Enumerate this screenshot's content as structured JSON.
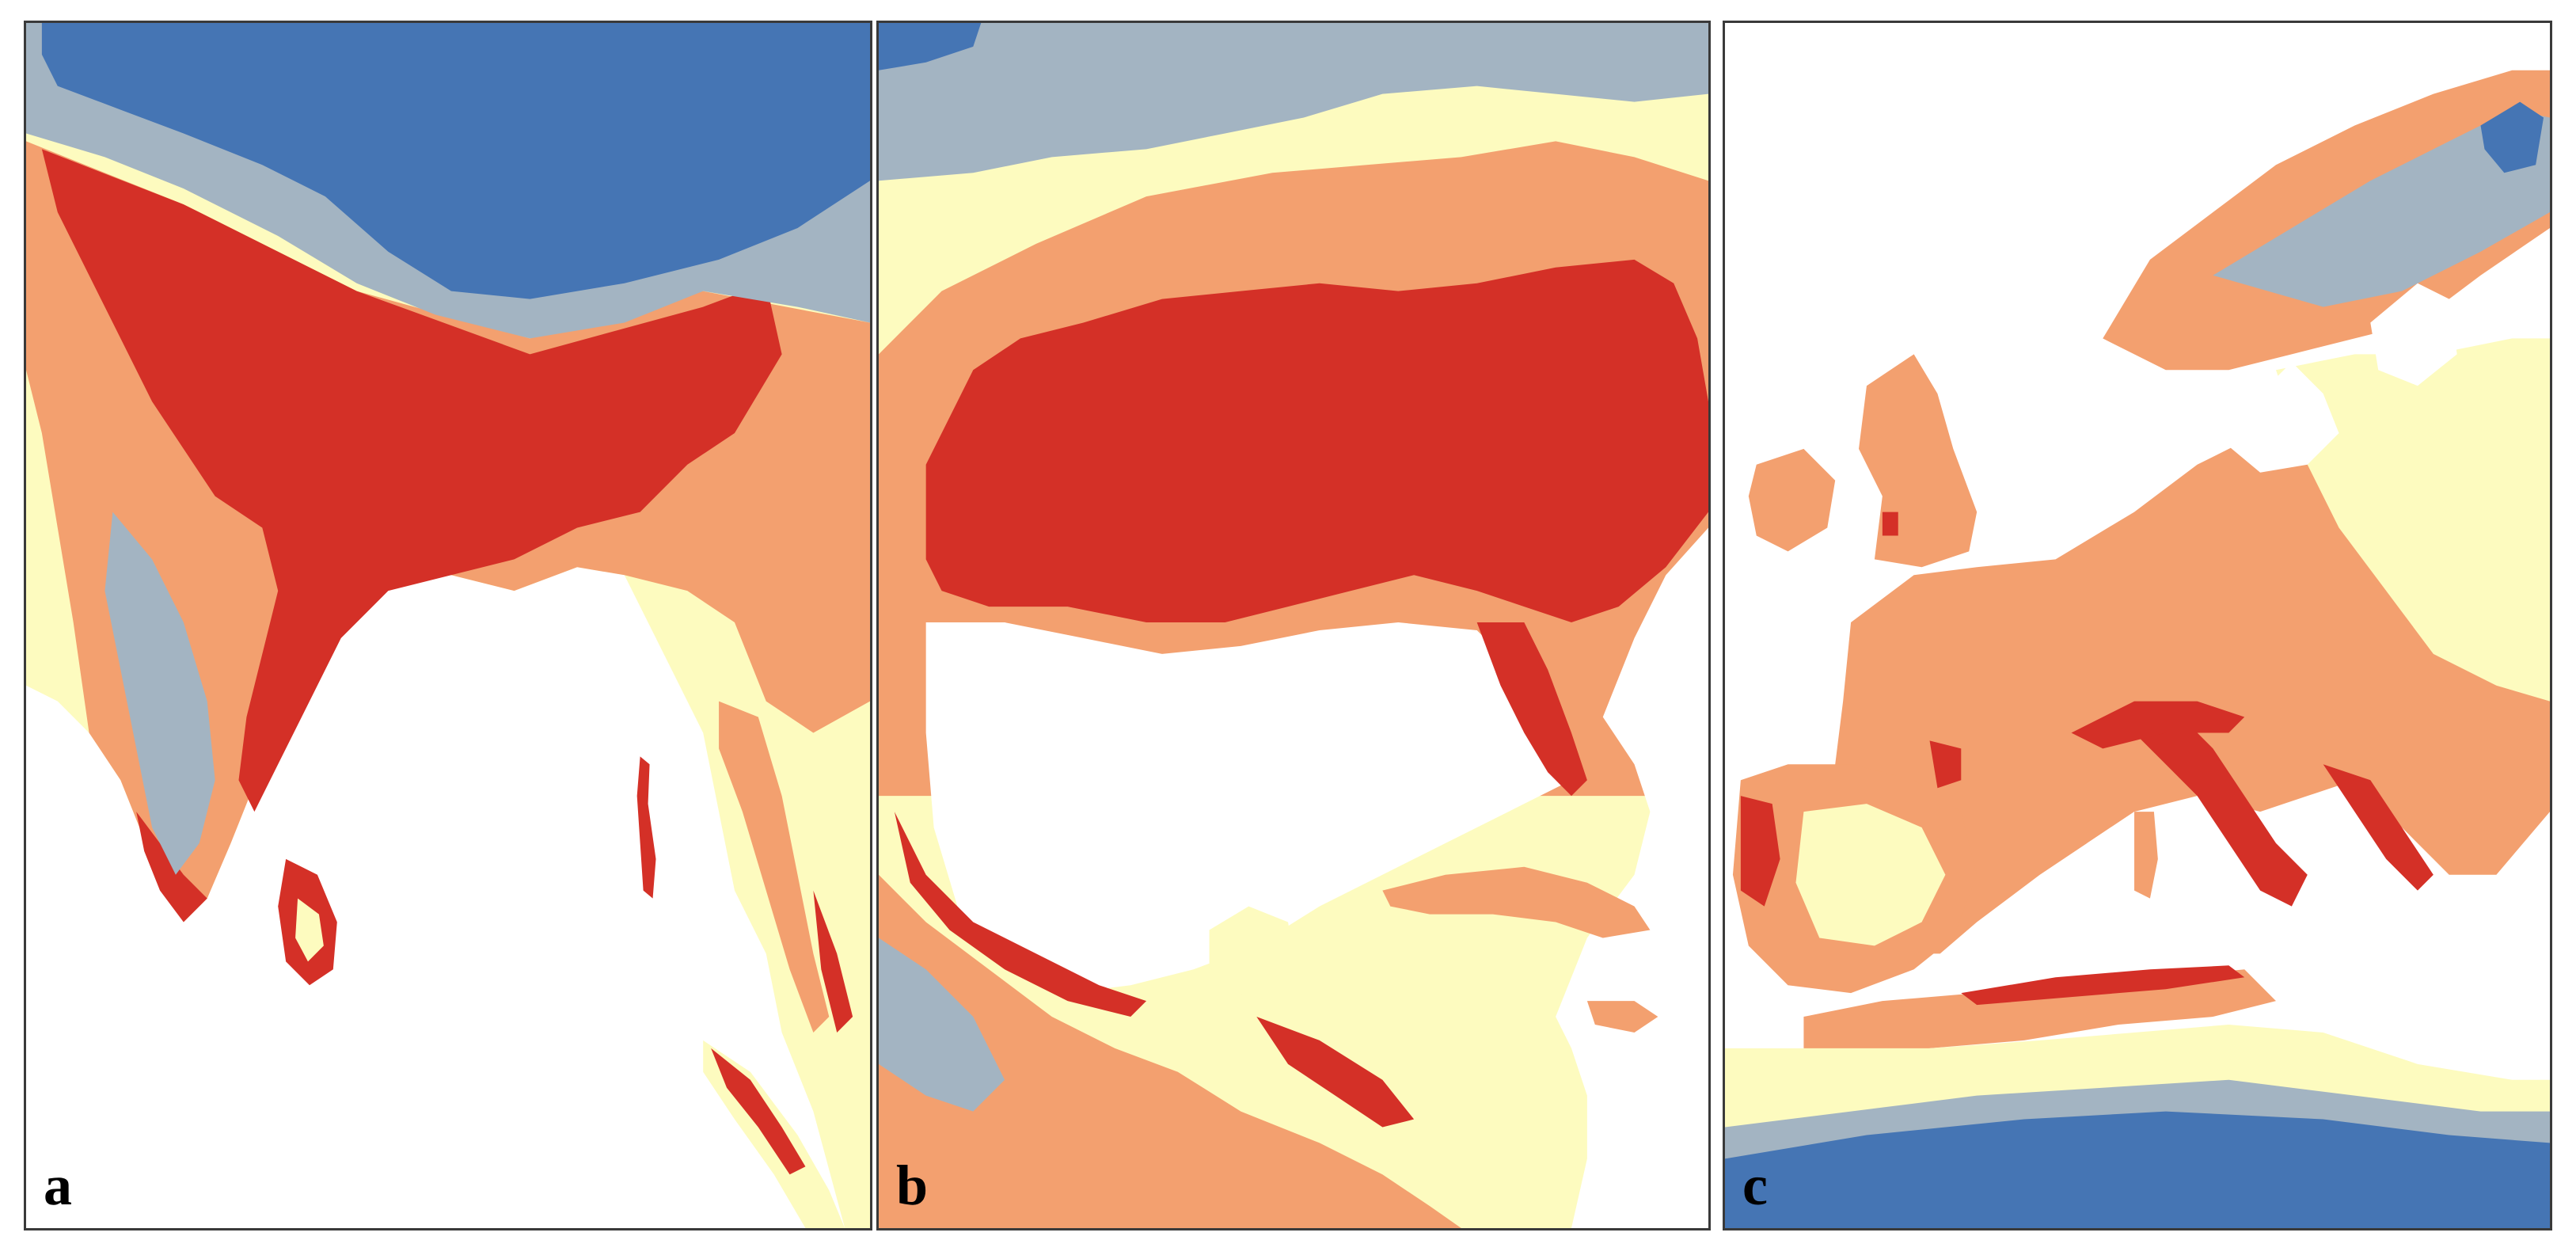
{
  "palette": {
    "very_high": "#d43027",
    "high": "#f3a06f",
    "moderate": "#fdfbbf",
    "low": "#a3b4c2",
    "very_low": "#4575b4",
    "water": "#ffffff"
  },
  "panels": [
    {
      "label": "a"
    },
    {
      "label": "b"
    },
    {
      "label": "c"
    }
  ]
}
